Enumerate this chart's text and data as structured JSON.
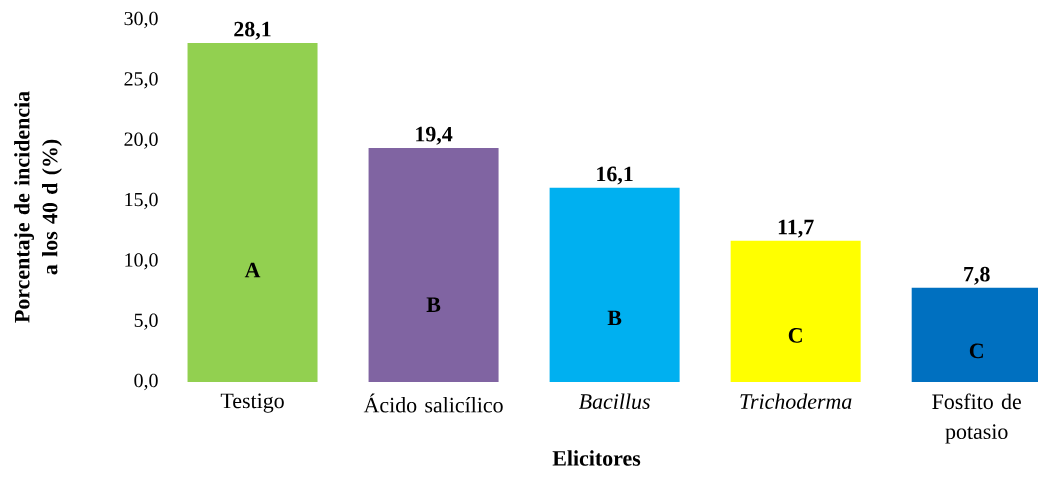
{
  "chart_data": {
    "type": "bar",
    "xlabel": "Elicitores",
    "ylabel": "Porcentaje de incidencia a los 40 d (%)",
    "categories": [
      "Testigo",
      "Ácido salicílico",
      "*Bacillus*",
      "*Trichoderma*",
      "Fosfito de potasio"
    ],
    "values": [
      28.1,
      19.4,
      16.1,
      11.7,
      7.8
    ],
    "colors": [
      "#92d050",
      "#8064a2",
      "#00b0f0",
      "#ffff00",
      "#0070c0"
    ],
    "value_labels": [
      "28,1",
      "19,4",
      "16,1",
      "11,7",
      "7,8"
    ],
    "ylim": [
      0,
      30
    ],
    "yticks": [
      {
        "value": 0,
        "label": "0,0"
      },
      {
        "value": 5,
        "label": "5,0"
      },
      {
        "value": 10,
        "label": "10,0"
      },
      {
        "value": 15,
        "label": "15,0"
      },
      {
        "value": 20,
        "label": "20,0"
      },
      {
        "value": 25,
        "label": "25,0"
      },
      {
        "value": 30,
        "label": "30,0"
      }
    ],
    "annotations": [
      "A",
      "B",
      "B",
      "C",
      "C"
    ]
  }
}
